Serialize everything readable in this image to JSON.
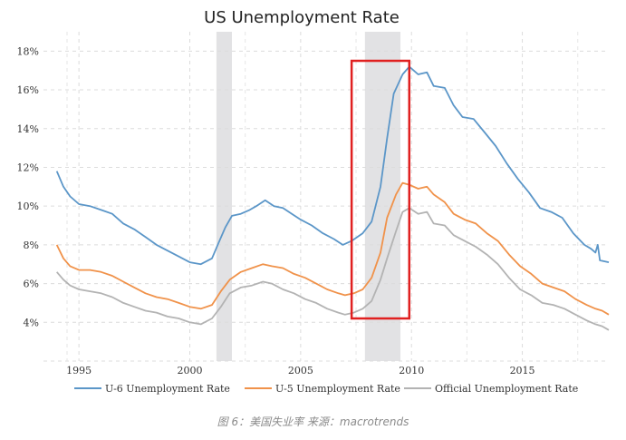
{
  "caption": "图 6：美国失业率 来源：macrotrends",
  "chart_data": {
    "type": "line",
    "title": "US Unemployment Rate",
    "xlabel": "",
    "ylabel": "",
    "xlim": [
      1993.4,
      2018.9
    ],
    "ylim": [
      2.0,
      19.0
    ],
    "x_ticks": [
      1995,
      2000,
      2005,
      2010,
      2015
    ],
    "y_ticks": [
      4,
      6,
      8,
      10,
      12,
      14,
      16,
      18
    ],
    "y_tick_labels": [
      "4%",
      "6%",
      "8%",
      "10%",
      "12%",
      "14%",
      "16%",
      "18%"
    ],
    "grid": true,
    "legend_position": "bottom",
    "recessions": [
      [
        2001.2,
        2001.9
      ],
      [
        2007.9,
        2009.5
      ]
    ],
    "highlight_box": {
      "x": [
        2007.3,
        2009.9
      ],
      "y": [
        4.2,
        17.5
      ],
      "color": "#e02020"
    },
    "series": [
      {
        "name": "U-6 Unemployment Rate",
        "color": "#5b96c8",
        "points": [
          [
            1994.0,
            11.8
          ],
          [
            1994.3,
            11.0
          ],
          [
            1994.6,
            10.5
          ],
          [
            1995.0,
            10.1
          ],
          [
            1995.5,
            10.0
          ],
          [
            1996.0,
            9.8
          ],
          [
            1996.5,
            9.6
          ],
          [
            1997.0,
            9.1
          ],
          [
            1997.5,
            8.8
          ],
          [
            1998.0,
            8.4
          ],
          [
            1998.5,
            8.0
          ],
          [
            1999.0,
            7.7
          ],
          [
            1999.5,
            7.4
          ],
          [
            2000.0,
            7.1
          ],
          [
            2000.5,
            7.0
          ],
          [
            2001.0,
            7.3
          ],
          [
            2001.3,
            8.1
          ],
          [
            2001.6,
            8.9
          ],
          [
            2001.9,
            9.5
          ],
          [
            2002.3,
            9.6
          ],
          [
            2002.7,
            9.8
          ],
          [
            2003.0,
            10.0
          ],
          [
            2003.4,
            10.3
          ],
          [
            2003.8,
            10.0
          ],
          [
            2004.2,
            9.9
          ],
          [
            2004.6,
            9.6
          ],
          [
            2005.0,
            9.3
          ],
          [
            2005.5,
            9.0
          ],
          [
            2006.0,
            8.6
          ],
          [
            2006.5,
            8.3
          ],
          [
            2006.9,
            8.0
          ],
          [
            2007.3,
            8.2
          ],
          [
            2007.8,
            8.6
          ],
          [
            2008.2,
            9.2
          ],
          [
            2008.6,
            11.0
          ],
          [
            2008.9,
            13.5
          ],
          [
            2009.2,
            15.8
          ],
          [
            2009.6,
            16.8
          ],
          [
            2009.9,
            17.2
          ],
          [
            2010.3,
            16.8
          ],
          [
            2010.7,
            16.9
          ],
          [
            2011.0,
            16.2
          ],
          [
            2011.5,
            16.1
          ],
          [
            2011.9,
            15.2
          ],
          [
            2012.3,
            14.6
          ],
          [
            2012.8,
            14.5
          ],
          [
            2013.3,
            13.8
          ],
          [
            2013.8,
            13.1
          ],
          [
            2014.3,
            12.2
          ],
          [
            2014.8,
            11.4
          ],
          [
            2015.3,
            10.7
          ],
          [
            2015.8,
            9.9
          ],
          [
            2016.3,
            9.7
          ],
          [
            2016.8,
            9.4
          ],
          [
            2017.3,
            8.6
          ],
          [
            2017.8,
            8.0
          ],
          [
            2018.1,
            7.8
          ],
          [
            2018.3,
            7.6
          ],
          [
            2018.4,
            8.0
          ],
          [
            2018.5,
            7.2
          ],
          [
            2018.9,
            7.1
          ]
        ]
      },
      {
        "name": "U-5 Unemployment Rate",
        "color": "#f0924a",
        "points": [
          [
            1994.0,
            8.0
          ],
          [
            1994.3,
            7.3
          ],
          [
            1994.6,
            6.9
          ],
          [
            1995.0,
            6.7
          ],
          [
            1995.5,
            6.7
          ],
          [
            1996.0,
            6.6
          ],
          [
            1996.5,
            6.4
          ],
          [
            1997.0,
            6.1
          ],
          [
            1997.5,
            5.8
          ],
          [
            1998.0,
            5.5
          ],
          [
            1998.5,
            5.3
          ],
          [
            1999.0,
            5.2
          ],
          [
            1999.5,
            5.0
          ],
          [
            2000.0,
            4.8
          ],
          [
            2000.5,
            4.7
          ],
          [
            2001.0,
            4.9
          ],
          [
            2001.4,
            5.6
          ],
          [
            2001.8,
            6.2
          ],
          [
            2002.3,
            6.6
          ],
          [
            2002.8,
            6.8
          ],
          [
            2003.3,
            7.0
          ],
          [
            2003.7,
            6.9
          ],
          [
            2004.2,
            6.8
          ],
          [
            2004.7,
            6.5
          ],
          [
            2005.2,
            6.3
          ],
          [
            2005.7,
            6.0
          ],
          [
            2006.2,
            5.7
          ],
          [
            2006.7,
            5.5
          ],
          [
            2007.0,
            5.4
          ],
          [
            2007.4,
            5.5
          ],
          [
            2007.8,
            5.7
          ],
          [
            2008.2,
            6.3
          ],
          [
            2008.6,
            7.6
          ],
          [
            2008.9,
            9.4
          ],
          [
            2009.3,
            10.6
          ],
          [
            2009.6,
            11.2
          ],
          [
            2009.9,
            11.1
          ],
          [
            2010.3,
            10.9
          ],
          [
            2010.7,
            11.0
          ],
          [
            2011.0,
            10.6
          ],
          [
            2011.5,
            10.2
          ],
          [
            2011.9,
            9.6
          ],
          [
            2012.4,
            9.3
          ],
          [
            2012.9,
            9.1
          ],
          [
            2013.4,
            8.6
          ],
          [
            2013.9,
            8.2
          ],
          [
            2014.4,
            7.5
          ],
          [
            2014.9,
            6.9
          ],
          [
            2015.4,
            6.5
          ],
          [
            2015.9,
            6.0
          ],
          [
            2016.4,
            5.8
          ],
          [
            2016.9,
            5.6
          ],
          [
            2017.4,
            5.2
          ],
          [
            2017.9,
            4.9
          ],
          [
            2018.3,
            4.7
          ],
          [
            2018.6,
            4.6
          ],
          [
            2018.9,
            4.4
          ]
        ]
      },
      {
        "name": "Official Unemployment Rate",
        "color": "#b3b3b3",
        "points": [
          [
            1994.0,
            6.6
          ],
          [
            1994.3,
            6.2
          ],
          [
            1994.6,
            5.9
          ],
          [
            1995.0,
            5.7
          ],
          [
            1995.5,
            5.6
          ],
          [
            1996.0,
            5.5
          ],
          [
            1996.5,
            5.3
          ],
          [
            1997.0,
            5.0
          ],
          [
            1997.5,
            4.8
          ],
          [
            1998.0,
            4.6
          ],
          [
            1998.5,
            4.5
          ],
          [
            1999.0,
            4.3
          ],
          [
            1999.5,
            4.2
          ],
          [
            2000.0,
            4.0
          ],
          [
            2000.5,
            3.9
          ],
          [
            2001.0,
            4.2
          ],
          [
            2001.4,
            4.8
          ],
          [
            2001.8,
            5.5
          ],
          [
            2002.3,
            5.8
          ],
          [
            2002.8,
            5.9
          ],
          [
            2003.3,
            6.1
          ],
          [
            2003.7,
            6.0
          ],
          [
            2004.2,
            5.7
          ],
          [
            2004.7,
            5.5
          ],
          [
            2005.2,
            5.2
          ],
          [
            2005.7,
            5.0
          ],
          [
            2006.2,
            4.7
          ],
          [
            2006.7,
            4.5
          ],
          [
            2007.0,
            4.4
          ],
          [
            2007.4,
            4.5
          ],
          [
            2007.8,
            4.7
          ],
          [
            2008.2,
            5.1
          ],
          [
            2008.6,
            6.2
          ],
          [
            2008.9,
            7.3
          ],
          [
            2009.3,
            8.7
          ],
          [
            2009.6,
            9.7
          ],
          [
            2009.9,
            9.9
          ],
          [
            2010.3,
            9.6
          ],
          [
            2010.7,
            9.7
          ],
          [
            2011.0,
            9.1
          ],
          [
            2011.5,
            9.0
          ],
          [
            2011.9,
            8.5
          ],
          [
            2012.4,
            8.2
          ],
          [
            2012.9,
            7.9
          ],
          [
            2013.4,
            7.5
          ],
          [
            2013.9,
            7.0
          ],
          [
            2014.4,
            6.3
          ],
          [
            2014.9,
            5.7
          ],
          [
            2015.4,
            5.4
          ],
          [
            2015.9,
            5.0
          ],
          [
            2016.4,
            4.9
          ],
          [
            2016.9,
            4.7
          ],
          [
            2017.4,
            4.4
          ],
          [
            2017.9,
            4.1
          ],
          [
            2018.3,
            3.9
          ],
          [
            2018.6,
            3.8
          ],
          [
            2018.9,
            3.6
          ]
        ]
      }
    ]
  }
}
